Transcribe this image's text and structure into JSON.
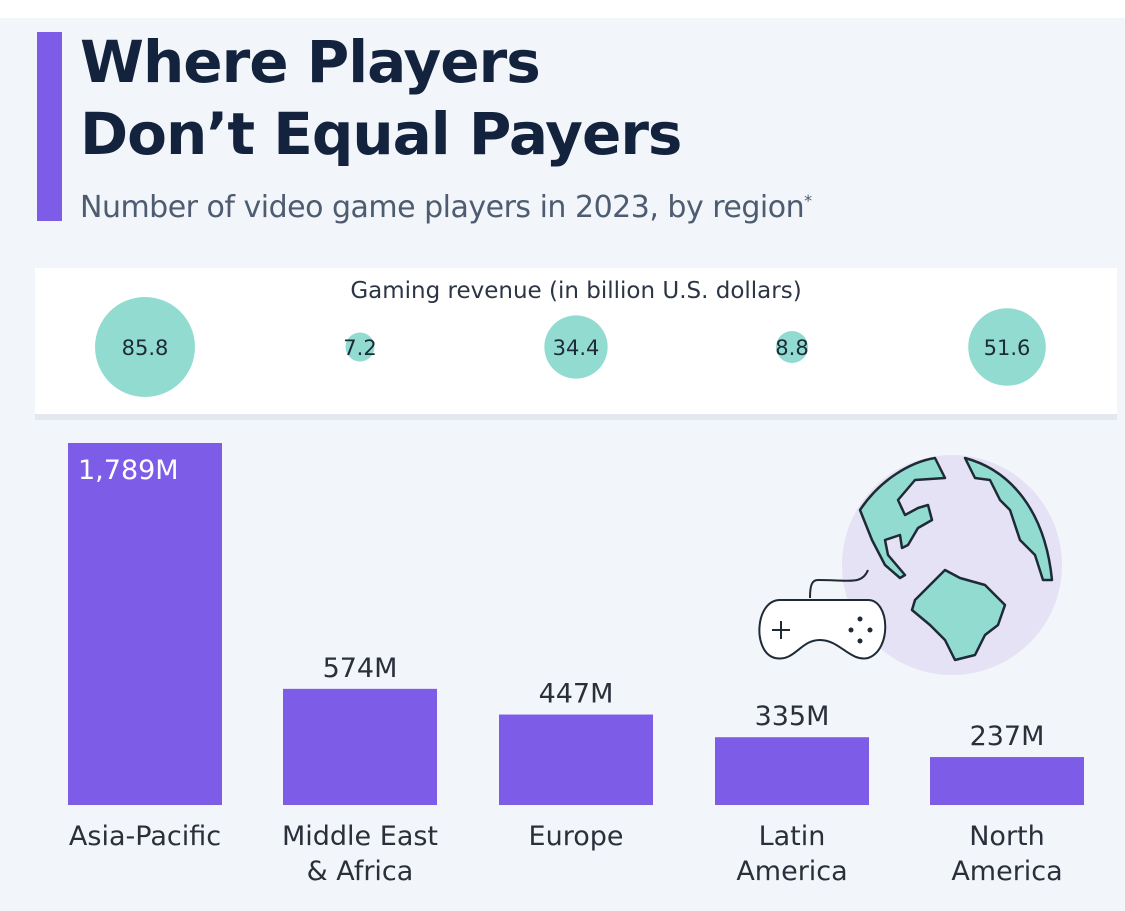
{
  "title_line1": "Where Players",
  "title_line2": "Don’t Equal Payers",
  "subtitle": "Number of video game players in 2023, by region",
  "subtitle_mark": "*",
  "icon": "globe-with-gamepad-icon",
  "colors": {
    "bar": "#7d5ce8",
    "bubble": "#92dbd1",
    "text": "#13233d"
  },
  "chart_data": [
    {
      "type": "bar",
      "title": "Number of video game players in 2023, by region",
      "categories": [
        "Asia-Pacific",
        "Middle East & Africa",
        "Europe",
        "Latin America",
        "North America"
      ],
      "category_lines": [
        [
          "Asia-Pacific"
        ],
        [
          "Middle East",
          "& Africa"
        ],
        [
          "Europe"
        ],
        [
          "Latin",
          "America"
        ],
        [
          "North",
          "America"
        ]
      ],
      "values": [
        1789,
        574,
        447,
        335,
        237
      ],
      "labels": [
        "1,789M",
        "574M",
        "447M",
        "335M",
        "237M"
      ],
      "unit": "million players",
      "ylim": [
        0,
        1789
      ],
      "grid": false
    },
    {
      "type": "bubble",
      "title": "Gaming revenue (in billion U.S. dollars)",
      "categories": [
        "Asia-Pacific",
        "Middle East & Africa",
        "Europe",
        "Latin America",
        "North America"
      ],
      "values": [
        85.8,
        7.2,
        34.4,
        8.8,
        51.6
      ],
      "labels": [
        "85.8",
        "7.2",
        "34.4",
        "8.8",
        "51.6"
      ]
    }
  ]
}
